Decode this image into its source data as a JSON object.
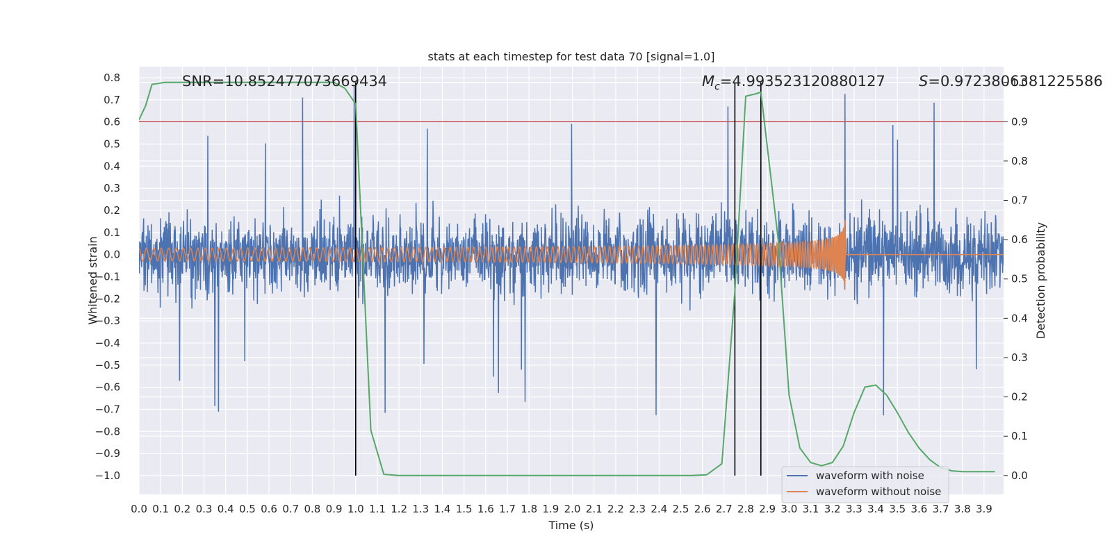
{
  "chart_data": {
    "type": "line",
    "title": "stats at each timestep for test data 70 [signal=1.0]",
    "xlabel": "Time (s)",
    "ylabel": "Whitened strain",
    "y2label": "Detection probability",
    "xlim": [
      0.0,
      3.99
    ],
    "ylim": [
      -1.085,
      0.85
    ],
    "y2lim": [
      -0.048,
      1.04
    ],
    "xticks": [
      "0.0",
      "0.1",
      "0.2",
      "0.3",
      "0.4",
      "0.5",
      "0.6",
      "0.7",
      "0.8",
      "0.9",
      "1.0",
      "1.1",
      "1.2",
      "1.3",
      "1.4",
      "1.5",
      "1.6",
      "1.7",
      "1.8",
      "1.9",
      "2.0",
      "2.1",
      "2.2",
      "2.3",
      "2.4",
      "2.5",
      "2.6",
      "2.7",
      "2.8",
      "2.9",
      "3.0",
      "3.1",
      "3.2",
      "3.3",
      "3.4",
      "3.5",
      "3.6",
      "3.7",
      "3.8",
      "3.9"
    ],
    "yticks": [
      "0.8",
      "0.7",
      "0.6",
      "0.5",
      "0.4",
      "0.3",
      "0.2",
      "0.1",
      "0.0",
      "−0.1",
      "−0.2",
      "−0.3",
      "−0.4",
      "−0.5",
      "−0.6",
      "−0.7",
      "−0.8",
      "−0.9",
      "−1.0"
    ],
    "y2ticks": [
      "1.0",
      "0.9",
      "0.8",
      "0.7",
      "0.6",
      "0.5",
      "0.4",
      "0.3",
      "0.2",
      "0.1",
      "0.0"
    ],
    "annotations": {
      "snr": "SNR=10.852477073669434",
      "mc_symbol": "M",
      "mc_sub": "c",
      "mc_value": "=4.993523120880127",
      "s_symbol": "S",
      "s_value": "=0.9723806381225586"
    },
    "legend": {
      "position": "lower-right",
      "entries": [
        {
          "label": "waveform with noise",
          "color": "#4c72b0"
        },
        {
          "label": "waveform without noise",
          "color": "#dd8452"
        }
      ]
    },
    "threshold": {
      "y2": 0.9,
      "color": "#c44e52"
    },
    "vlines": [
      1.0,
      2.75,
      2.87
    ],
    "noise": {
      "seed": 70,
      "amplitude": 0.45,
      "spike_max": 0.78,
      "min": -1.0
    },
    "signal": {
      "amplitude_start": 0.03,
      "amplitude_peak": 0.22,
      "merger_time": 3.26,
      "cycles_approx": 150,
      "color": "#dd8452"
    },
    "series": [
      {
        "name": "detection probability",
        "axis": "y2",
        "color": "#55a868",
        "x": [
          0.0,
          0.03,
          0.06,
          0.12,
          0.2,
          0.3,
          0.4,
          0.5,
          0.6,
          0.7,
          0.8,
          0.9,
          0.95,
          1.0,
          1.07,
          1.13,
          1.2,
          1.3,
          1.5,
          2.0,
          2.4,
          2.55,
          2.62,
          2.69,
          2.75,
          2.8,
          2.84,
          2.87,
          2.95,
          3.0,
          3.05,
          3.1,
          3.15,
          3.2,
          3.25,
          3.3,
          3.35,
          3.4,
          3.45,
          3.5,
          3.55,
          3.6,
          3.65,
          3.7,
          3.75,
          3.8,
          3.85,
          3.9,
          3.95
        ],
        "y": [
          0.905,
          0.94,
          0.995,
          1.0,
          1.0,
          1.0,
          1.0,
          1.0,
          1.0,
          1.0,
          1.0,
          1.0,
          0.985,
          0.945,
          0.115,
          0.003,
          0.0,
          0.0,
          0.0,
          0.0,
          0.0,
          0.0,
          0.002,
          0.03,
          0.47,
          0.965,
          0.97,
          0.975,
          0.6,
          0.205,
          0.07,
          0.033,
          0.025,
          0.033,
          0.075,
          0.16,
          0.225,
          0.23,
          0.205,
          0.16,
          0.11,
          0.07,
          0.04,
          0.02,
          0.012,
          0.01,
          0.01,
          0.01,
          0.01
        ]
      }
    ]
  }
}
